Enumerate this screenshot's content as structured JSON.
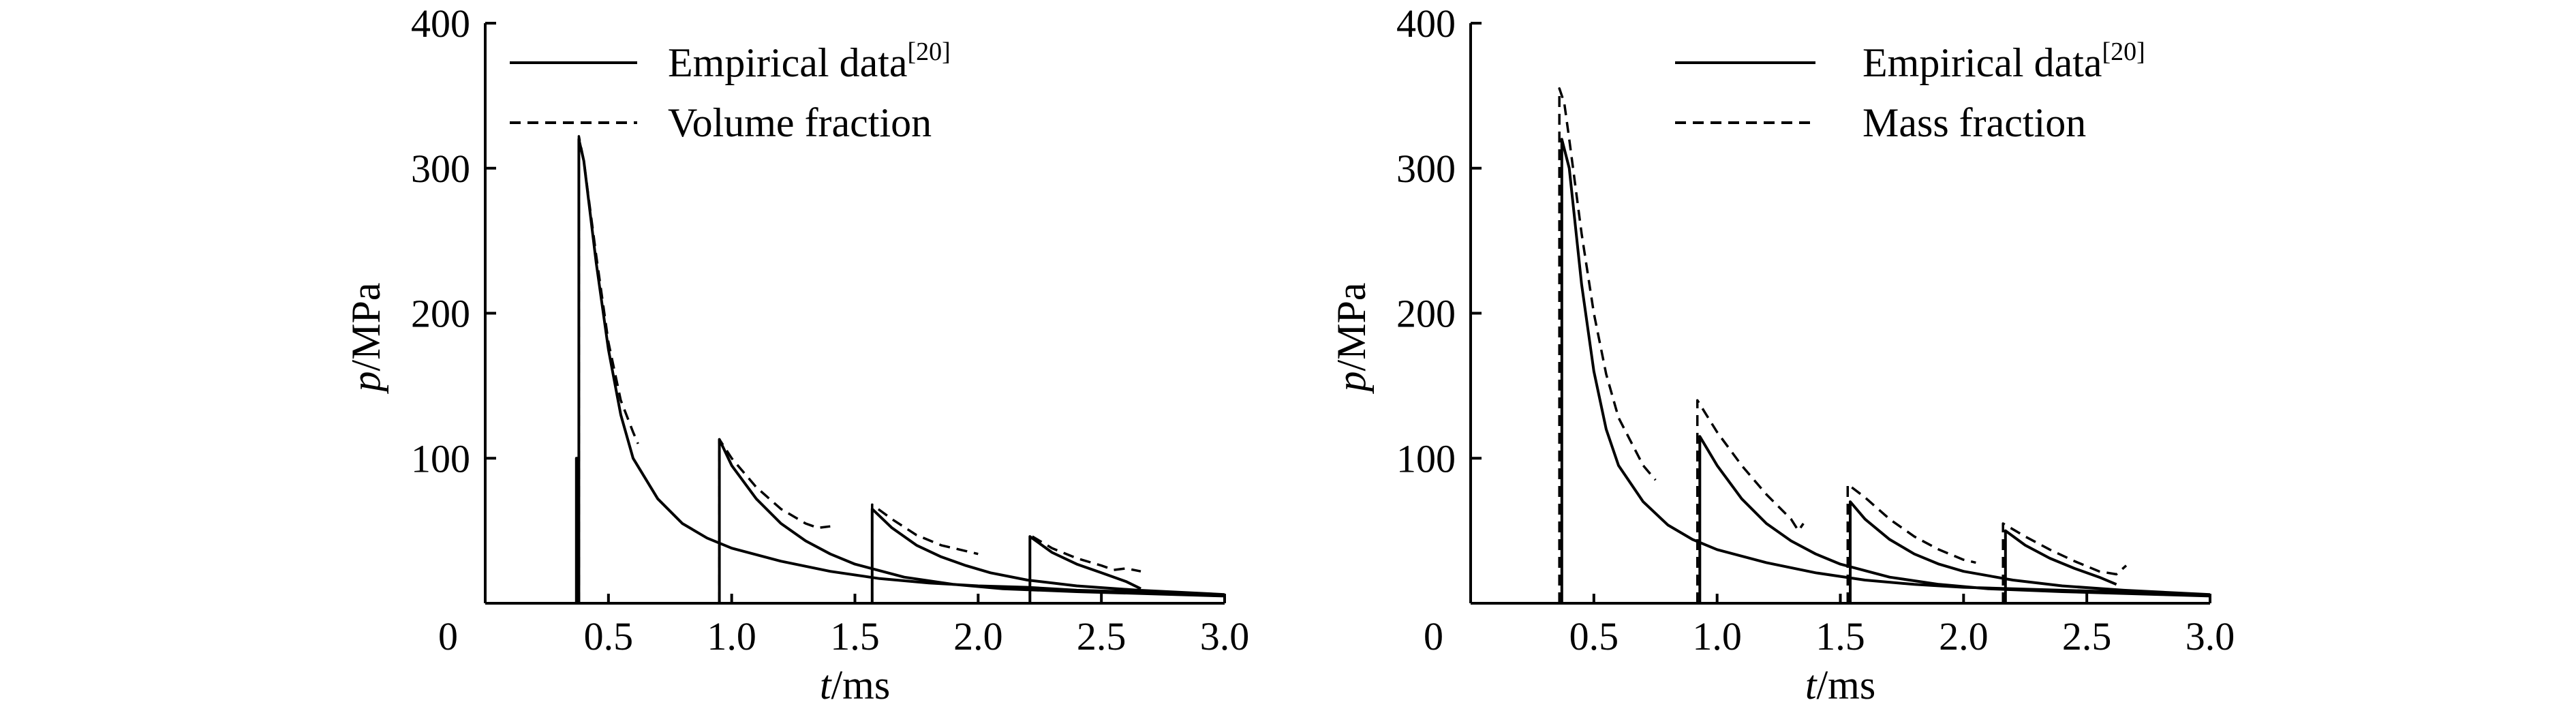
{
  "chart_data": [
    {
      "type": "line",
      "x_unit": "ms",
      "y_unit": "MPa",
      "xlabel_var": "t",
      "xlabel_unit": "/ms",
      "ylabel_var": "p",
      "ylabel_unit": "/MPa",
      "origin_label": "0",
      "xlim": [
        0,
        3.0
      ],
      "ylim": [
        0,
        400
      ],
      "x_ticks": [
        "0.5",
        "1.0",
        "1.5",
        "2.0",
        "2.5",
        "3.0"
      ],
      "x_tick_values": [
        0.5,
        1.0,
        1.5,
        2.0,
        2.5,
        3.0
      ],
      "y_ticks": [
        "100",
        "200",
        "300",
        "400"
      ],
      "y_tick_values": [
        100,
        200,
        300,
        400
      ],
      "grid": false,
      "legend_position": "top",
      "series": [
        {
          "name": "Empirical data",
          "name_sup": "[20]",
          "style": "solid",
          "points": [
            [
              0,
              0
            ],
            [
              0.37,
              0
            ],
            [
              0.37,
              100
            ],
            [
              0.375,
              100
            ],
            [
              0.375,
              0
            ],
            [
              0.38,
              0
            ],
            [
              0.38,
              320
            ],
            [
              0.4,
              305
            ],
            [
              0.45,
              235
            ],
            [
              0.5,
              175
            ],
            [
              0.55,
              130
            ],
            [
              0.6,
              100
            ],
            [
              0.7,
              72
            ],
            [
              0.8,
              55
            ],
            [
              0.9,
              45
            ],
            [
              1.0,
              38
            ],
            [
              1.2,
              29
            ],
            [
              1.4,
              22
            ],
            [
              1.6,
              17
            ],
            [
              1.8,
              14
            ],
            [
              2.0,
              12
            ],
            [
              2.2,
              11
            ],
            [
              2.4,
              9
            ],
            [
              2.6,
              8
            ],
            [
              2.8,
              7
            ],
            [
              3.0,
              6
            ],
            null,
            [
              0.95,
              0
            ],
            [
              0.95,
              113
            ],
            [
              1.0,
              95
            ],
            [
              1.1,
              72
            ],
            [
              1.2,
              55
            ],
            [
              1.3,
              43
            ],
            [
              1.4,
              34
            ],
            [
              1.5,
              27
            ],
            [
              1.7,
              18
            ],
            [
              1.9,
              13
            ],
            [
              2.1,
              10
            ],
            [
              2.4,
              8
            ],
            [
              2.8,
              6
            ],
            [
              3.0,
              5
            ],
            null,
            [
              1.57,
              0
            ],
            [
              1.57,
              65
            ],
            [
              1.65,
              52
            ],
            [
              1.75,
              40
            ],
            [
              1.85,
              32
            ],
            [
              1.95,
              26
            ],
            [
              2.05,
              21
            ],
            [
              2.2,
              16
            ],
            [
              2.4,
              12
            ],
            [
              2.65,
              9
            ],
            [
              3.0,
              6
            ],
            null,
            [
              2.21,
              0
            ],
            [
              2.21,
              46
            ],
            [
              2.3,
              35
            ],
            [
              2.4,
              27
            ],
            [
              2.5,
              21
            ],
            [
              2.6,
              15
            ],
            [
              2.66,
              10
            ]
          ]
        },
        {
          "name": "Volume fraction",
          "style": "dashed",
          "points": [
            [
              0.38,
              0
            ],
            [
              0.38,
              322
            ],
            [
              0.4,
              305
            ],
            [
              0.45,
              240
            ],
            [
              0.5,
              180
            ],
            [
              0.55,
              140
            ],
            [
              0.6,
              118
            ],
            [
              0.62,
              110
            ],
            null,
            [
              0.95,
              0
            ],
            [
              0.95,
              113
            ],
            [
              1.0,
              100
            ],
            [
              1.1,
              80
            ],
            [
              1.2,
              65
            ],
            [
              1.3,
              55
            ],
            [
              1.35,
              52
            ],
            [
              1.4,
              53
            ],
            null,
            [
              1.57,
              0
            ],
            [
              1.57,
              68
            ],
            [
              1.65,
              58
            ],
            [
              1.75,
              47
            ],
            [
              1.85,
              40
            ],
            [
              1.95,
              36
            ],
            [
              2.0,
              34
            ],
            null,
            [
              2.21,
              0
            ],
            [
              2.21,
              47
            ],
            [
              2.3,
              38
            ],
            [
              2.4,
              31
            ],
            [
              2.5,
              26
            ],
            [
              2.55,
              23
            ],
            [
              2.6,
              24
            ],
            [
              2.66,
              22
            ]
          ]
        }
      ]
    },
    {
      "type": "line",
      "x_unit": "ms",
      "y_unit": "MPa",
      "xlabel_var": "t",
      "xlabel_unit": "/ms",
      "ylabel_var": "p",
      "ylabel_unit": "/MPa",
      "origin_label": "0",
      "xlim": [
        0,
        3.0
      ],
      "ylim": [
        0,
        400
      ],
      "x_ticks": [
        "0.5",
        "1.0",
        "1.5",
        "2.0",
        "2.5",
        "3.0"
      ],
      "x_tick_values": [
        0.5,
        1.0,
        1.5,
        2.0,
        2.5,
        3.0
      ],
      "y_ticks": [
        "100",
        "200",
        "300",
        "400"
      ],
      "y_tick_values": [
        100,
        200,
        300,
        400
      ],
      "grid": false,
      "legend_position": "top",
      "series": [
        {
          "name": "Empirical data",
          "name_sup": "[20]",
          "style": "solid",
          "points": [
            [
              0,
              0
            ],
            [
              0.37,
              0
            ],
            [
              0.37,
              320
            ],
            [
              0.4,
              300
            ],
            [
              0.45,
              220
            ],
            [
              0.5,
              160
            ],
            [
              0.55,
              120
            ],
            [
              0.6,
              95
            ],
            [
              0.7,
              70
            ],
            [
              0.8,
              54
            ],
            [
              0.9,
              44
            ],
            [
              1.0,
              37
            ],
            [
              1.2,
              28
            ],
            [
              1.4,
              21
            ],
            [
              1.6,
              16
            ],
            [
              1.8,
              13
            ],
            [
              2.0,
              11
            ],
            [
              2.2,
              10
            ],
            [
              2.4,
              9
            ],
            [
              2.6,
              8
            ],
            [
              2.8,
              7
            ],
            [
              3.0,
              6
            ],
            null,
            [
              0.93,
              0
            ],
            [
              0.93,
              115
            ],
            [
              1.0,
              95
            ],
            [
              1.1,
              72
            ],
            [
              1.2,
              55
            ],
            [
              1.3,
              43
            ],
            [
              1.4,
              34
            ],
            [
              1.5,
              27
            ],
            [
              1.7,
              18
            ],
            [
              1.9,
              13
            ],
            [
              2.1,
              10
            ],
            [
              2.4,
              8
            ],
            [
              2.8,
              6
            ],
            [
              3.0,
              5
            ],
            null,
            [
              1.54,
              0
            ],
            [
              1.54,
              70
            ],
            [
              1.6,
              58
            ],
            [
              1.7,
              44
            ],
            [
              1.8,
              34
            ],
            [
              1.9,
              27
            ],
            [
              2.0,
              22
            ],
            [
              2.2,
              16
            ],
            [
              2.4,
              12
            ],
            [
              2.65,
              9
            ],
            [
              3.0,
              6
            ],
            null,
            [
              2.17,
              0
            ],
            [
              2.17,
              50
            ],
            [
              2.25,
              40
            ],
            [
              2.35,
              31
            ],
            [
              2.45,
              24
            ],
            [
              2.55,
              18
            ],
            [
              2.62,
              13
            ]
          ]
        },
        {
          "name": "Mass fraction",
          "style": "dashed",
          "points": [
            [
              0.36,
              0
            ],
            [
              0.36,
              355
            ],
            [
              0.38,
              345
            ],
            [
              0.4,
              320
            ],
            [
              0.45,
              255
            ],
            [
              0.5,
              200
            ],
            [
              0.55,
              158
            ],
            [
              0.6,
              128
            ],
            [
              0.7,
              95
            ],
            [
              0.75,
              85
            ],
            null,
            [
              0.92,
              0
            ],
            [
              0.92,
              140
            ],
            [
              1.0,
              118
            ],
            [
              1.1,
              95
            ],
            [
              1.2,
              75
            ],
            [
              1.3,
              58
            ],
            [
              1.33,
              50
            ],
            [
              1.35,
              55
            ],
            null,
            [
              1.53,
              0
            ],
            [
              1.53,
              82
            ],
            [
              1.6,
              73
            ],
            [
              1.7,
              58
            ],
            [
              1.8,
              46
            ],
            [
              1.9,
              37
            ],
            [
              2.0,
              30
            ],
            [
              2.05,
              28
            ],
            null,
            [
              2.16,
              0
            ],
            [
              2.16,
              55
            ],
            [
              2.25,
              46
            ],
            [
              2.35,
              37
            ],
            [
              2.45,
              29
            ],
            [
              2.55,
              22
            ],
            [
              2.62,
              20
            ],
            [
              2.66,
              26
            ]
          ]
        }
      ]
    }
  ]
}
